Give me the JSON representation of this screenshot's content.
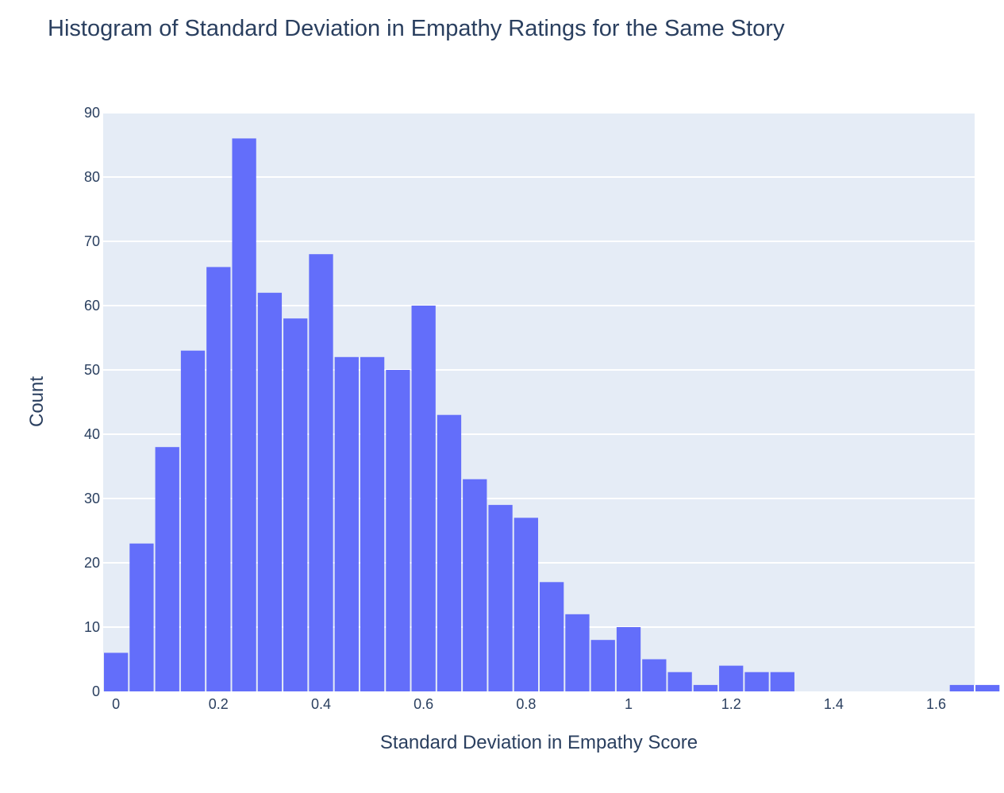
{
  "chart_data": {
    "type": "bar",
    "title": "Histogram of Standard Deviation in Empathy Ratings for the Same Story",
    "xlabel": "Standard Deviation in Empathy Score",
    "ylabel": "Count",
    "bin_width": 0.05,
    "bin_start": -0.025,
    "xlim": [
      -0.025,
      1.675
    ],
    "ylim": [
      0,
      90
    ],
    "grid": true,
    "x_ticks": [
      0,
      0.2,
      0.4,
      0.6,
      0.8,
      1,
      1.2,
      1.4,
      1.6
    ],
    "x_tick_labels": [
      "0",
      "0.2",
      "0.4",
      "0.6",
      "0.8",
      "1",
      "1.2",
      "1.4",
      "1.6"
    ],
    "y_ticks": [
      0,
      10,
      20,
      30,
      40,
      50,
      60,
      70,
      80,
      90
    ],
    "y_tick_labels": [
      "0",
      "10",
      "20",
      "30",
      "40",
      "50",
      "60",
      "70",
      "80",
      "90"
    ],
    "values": [
      6,
      23,
      38,
      53,
      66,
      86,
      62,
      58,
      68,
      52,
      52,
      50,
      60,
      43,
      33,
      29,
      27,
      17,
      12,
      8,
      10,
      5,
      3,
      1,
      4,
      3,
      3,
      0,
      0,
      0,
      0,
      0,
      0,
      1,
      1
    ],
    "colors": {
      "bar": "#636efa",
      "plot_bg": "#e5ecf6",
      "grid": "#ffffff",
      "text": "#2a3f5f"
    }
  }
}
